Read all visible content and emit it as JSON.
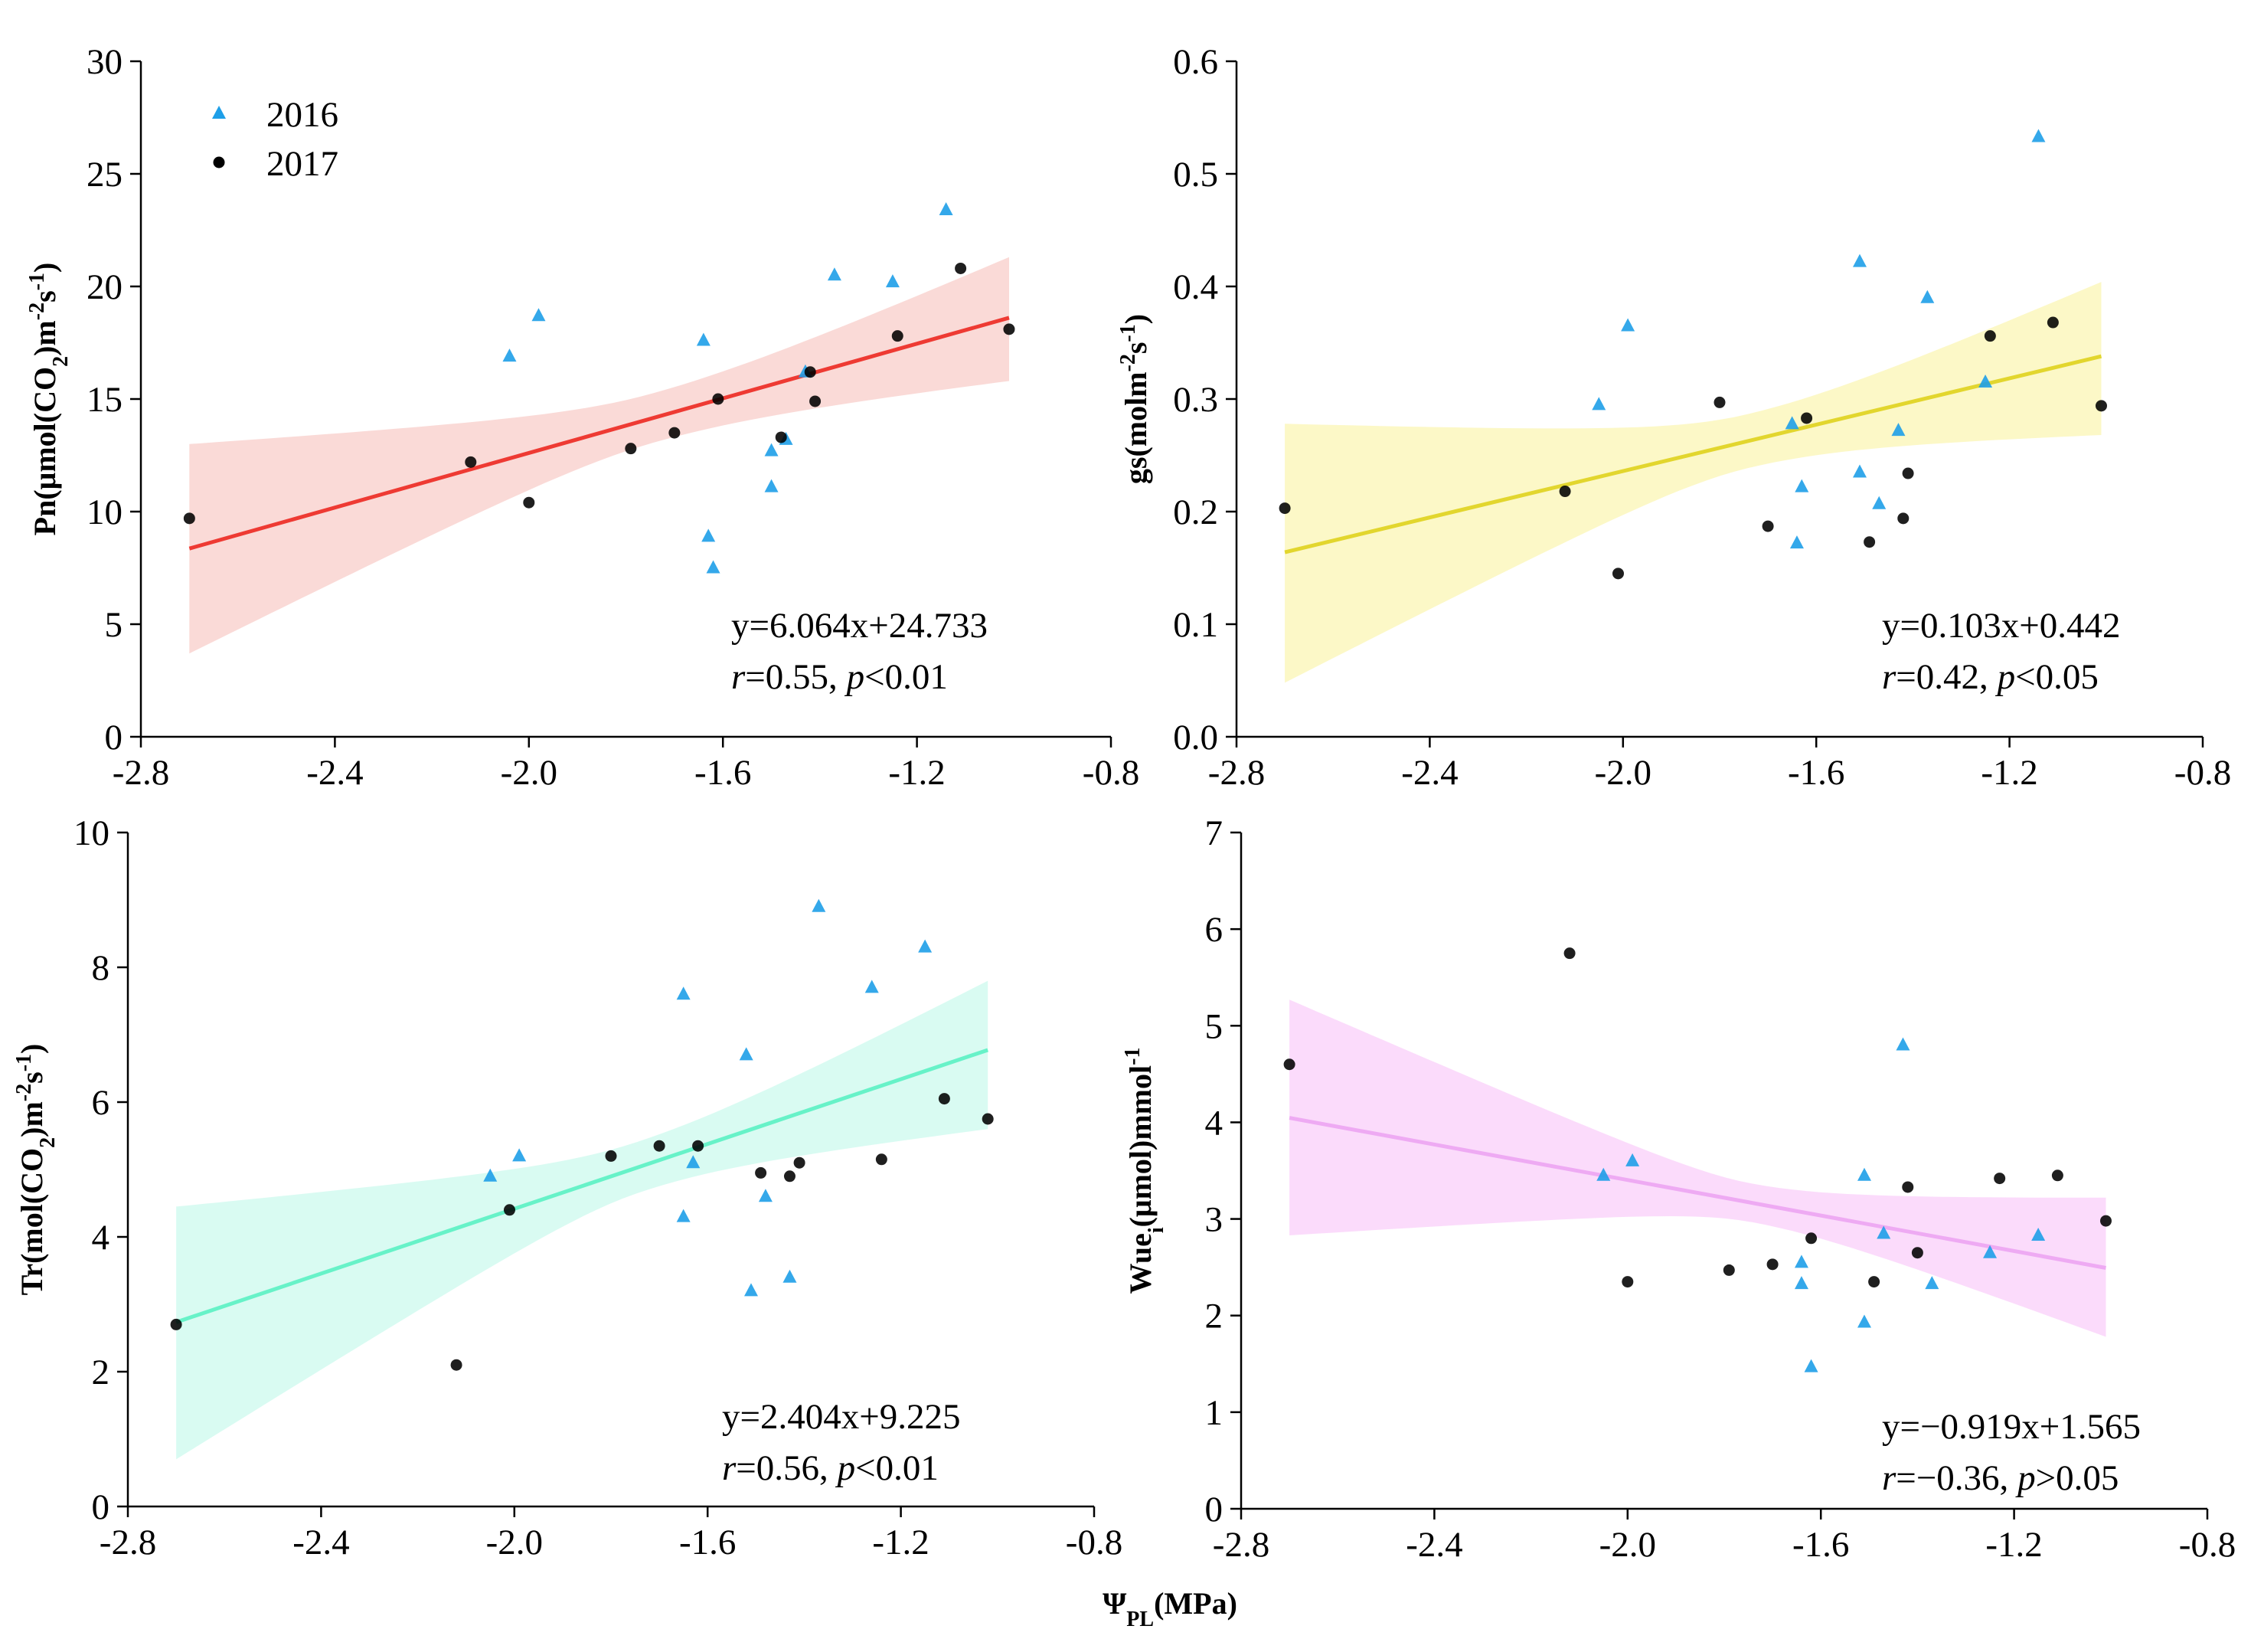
{
  "chart_data": [
    {
      "type": "scatter",
      "id": "pn",
      "xlim": [
        -2.8,
        -0.8
      ],
      "xticks": [
        -2.8,
        -2.4,
        -2.0,
        -1.6,
        -1.2,
        -0.8
      ],
      "xtick_labels": [
        "-2.8",
        "-2.4",
        "-2.0",
        "-1.6",
        "-1.2",
        "-0.8"
      ],
      "ylim": [
        0,
        30
      ],
      "yticks": [
        0,
        5,
        10,
        15,
        20,
        25,
        30
      ],
      "ytick_labels": [
        "0",
        "5",
        "10",
        "15",
        "20",
        "25",
        "30"
      ],
      "ylabel": {
        "pre": "Pn(μmol(CO",
        "sub": "2",
        "mid": ")m",
        "sup1": "-2",
        "mid2": "s",
        "sup2": "-1",
        "post": ")"
      },
      "series": [
        {
          "name": "2016",
          "marker": "triangle",
          "color": "#1e9fe8",
          "points": [
            [
              -2.04,
              16.9
            ],
            [
              -1.98,
              18.7
            ],
            [
              -1.64,
              17.6
            ],
            [
              -1.63,
              8.9
            ],
            [
              -1.62,
              7.5
            ],
            [
              -1.5,
              12.7
            ],
            [
              -1.5,
              11.1
            ],
            [
              -1.47,
              13.2
            ],
            [
              -1.43,
              16.2
            ],
            [
              -1.37,
              20.5
            ],
            [
              -1.25,
              20.2
            ],
            [
              -1.14,
              23.4
            ]
          ]
        },
        {
          "name": "2017",
          "marker": "circle",
          "color": "#000000",
          "points": [
            [
              -2.7,
              9.7
            ],
            [
              -2.12,
              12.2
            ],
            [
              -2.0,
              10.4
            ],
            [
              -1.79,
              12.8
            ],
            [
              -1.7,
              13.5
            ],
            [
              -1.61,
              15.0
            ],
            [
              -1.48,
              13.3
            ],
            [
              -1.42,
              16.2
            ],
            [
              -1.41,
              14.9
            ],
            [
              -1.24,
              17.8
            ],
            [
              -1.11,
              20.8
            ],
            [
              -1.01,
              18.1
            ]
          ]
        }
      ],
      "fit": {
        "slope": 6.064,
        "intercept": 24.733,
        "x_range": [
          -2.7,
          -1.01
        ],
        "color": "#ee3a33",
        "band_color": "#f9d4d0",
        "band_upper": [
          13.0,
          21.3
        ],
        "band_lower": [
          3.7,
          15.8
        ],
        "band_mid_x": -1.74,
        "band_half_width_min": 1.1
      },
      "equation": "y=6.064x+24.733",
      "stats": {
        "r": "0.55",
        "p_op": "<",
        "p": "0.01"
      }
    },
    {
      "type": "scatter",
      "id": "gs",
      "xlim": [
        -2.8,
        -0.8
      ],
      "xticks": [
        -2.8,
        -2.4,
        -2.0,
        -1.6,
        -1.2,
        -0.8
      ],
      "xtick_labels": [
        "-2.8",
        "-2.4",
        "-2.0",
        "-1.6",
        "-1.2",
        "-0.8"
      ],
      "ylim": [
        0,
        0.6
      ],
      "yticks": [
        0,
        0.1,
        0.2,
        0.3,
        0.4,
        0.5,
        0.6
      ],
      "ytick_labels": [
        "0.0",
        "0.1",
        "0.2",
        "0.3",
        "0.4",
        "0.5",
        "0.6"
      ],
      "ylabel": {
        "pre": "gs(molm",
        "sub": "",
        "mid": "",
        "sup1": "-2",
        "mid2": "s",
        "sup2": "-1",
        "post": ")"
      },
      "series": [
        {
          "name": "2016",
          "marker": "triangle",
          "color": "#1e9fe8",
          "points": [
            [
              -2.05,
              0.295
            ],
            [
              -1.99,
              0.365
            ],
            [
              -1.65,
              0.278
            ],
            [
              -1.64,
              0.172
            ],
            [
              -1.63,
              0.222
            ],
            [
              -1.51,
              0.422
            ],
            [
              -1.51,
              0.235
            ],
            [
              -1.47,
              0.207
            ],
            [
              -1.43,
              0.272
            ],
            [
              -1.37,
              0.39
            ],
            [
              -1.25,
              0.315
            ],
            [
              -1.14,
              0.533
            ]
          ]
        },
        {
          "name": "2017",
          "marker": "circle",
          "color": "#000000",
          "points": [
            [
              -2.7,
              0.203
            ],
            [
              -2.12,
              0.218
            ],
            [
              -2.01,
              0.145
            ],
            [
              -1.8,
              0.297
            ],
            [
              -1.7,
              0.187
            ],
            [
              -1.62,
              0.283
            ],
            [
              -1.49,
              0.173
            ],
            [
              -1.42,
              0.194
            ],
            [
              -1.41,
              0.234
            ],
            [
              -1.24,
              0.356
            ],
            [
              -1.11,
              0.368
            ],
            [
              -1.01,
              0.294
            ]
          ]
        }
      ],
      "fit": {
        "slope": 0.103,
        "intercept": 0.442,
        "x_range": [
          -2.7,
          -1.01
        ],
        "color": "#e2d62e",
        "band_color": "#fbf7bd",
        "band_upper": [
          0.278,
          0.404
        ],
        "band_lower": [
          0.048,
          0.268
        ],
        "band_mid_x": -1.74,
        "band_half_width_min": 0.024
      },
      "equation": "y=0.103x+0.442",
      "stats": {
        "r": "0.42",
        "p_op": "<",
        "p": "0.05"
      }
    },
    {
      "type": "scatter",
      "id": "tr",
      "xlim": [
        -2.8,
        -0.8
      ],
      "xticks": [
        -2.8,
        -2.4,
        -2.0,
        -1.6,
        -1.2,
        -0.8
      ],
      "xtick_labels": [
        "-2.8",
        "-2.4",
        "-2.0",
        "-1.6",
        "-1.2",
        "-0.8"
      ],
      "ylim": [
        0,
        10
      ],
      "yticks": [
        0,
        2,
        4,
        6,
        8,
        10
      ],
      "ytick_labels": [
        "0",
        "2",
        "4",
        "6",
        "8",
        "10"
      ],
      "ylabel": {
        "pre": "Tr(mol(CO",
        "sub": "2",
        "mid": ")m",
        "sup1": "-2",
        "mid2": "s",
        "sup2": "-1",
        "post": ")"
      },
      "series": [
        {
          "name": "2016",
          "marker": "triangle",
          "color": "#1e9fe8",
          "points": [
            [
              -2.05,
              4.9
            ],
            [
              -1.99,
              5.2
            ],
            [
              -1.65,
              7.6
            ],
            [
              -1.65,
              4.3
            ],
            [
              -1.63,
              5.1
            ],
            [
              -1.52,
              6.7
            ],
            [
              -1.51,
              3.2
            ],
            [
              -1.48,
              4.6
            ],
            [
              -1.43,
              3.4
            ],
            [
              -1.37,
              8.9
            ],
            [
              -1.26,
              7.7
            ],
            [
              -1.15,
              8.3
            ]
          ]
        },
        {
          "name": "2017",
          "marker": "circle",
          "color": "#000000",
          "points": [
            [
              -2.7,
              2.7
            ],
            [
              -2.12,
              2.1
            ],
            [
              -2.01,
              4.4
            ],
            [
              -1.8,
              5.2
            ],
            [
              -1.7,
              5.35
            ],
            [
              -1.62,
              5.35
            ],
            [
              -1.49,
              4.95
            ],
            [
              -1.43,
              4.9
            ],
            [
              -1.41,
              5.1
            ],
            [
              -1.24,
              5.15
            ],
            [
              -1.11,
              6.05
            ],
            [
              -1.02,
              5.75
            ]
          ]
        }
      ],
      "fit": {
        "slope": 2.404,
        "intercept": 9.225,
        "x_range": [
          -2.7,
          -1.02
        ],
        "color": "#67f2c8",
        "band_color": "#d2faf0",
        "band_upper": [
          4.45,
          7.8
        ],
        "band_lower": [
          0.7,
          5.6
        ],
        "band_mid_x": -1.74,
        "band_half_width_min": 0.38
      },
      "equation": "y=2.404x+9.225",
      "stats": {
        "r": "0.56",
        "p_op": "<",
        "p": "0.01"
      }
    },
    {
      "type": "scatter",
      "id": "wue",
      "xlim": [
        -2.8,
        -0.8
      ],
      "xticks": [
        -2.8,
        -2.4,
        -2.0,
        -1.6,
        -1.2,
        -0.8
      ],
      "xtick_labels": [
        "-2.8",
        "-2.4",
        "-2.0",
        "-1.6",
        "-1.2",
        "-0.8"
      ],
      "ylim": [
        0,
        7
      ],
      "yticks": [
        0,
        1,
        2,
        3,
        4,
        5,
        6,
        7
      ],
      "ytick_labels": [
        "0",
        "1",
        "2",
        "3",
        "4",
        "5",
        "6",
        "7"
      ],
      "ylabel": {
        "pre": "Wue",
        "sub": "i",
        "mid": "(μmol)mmol",
        "sup1": "-1",
        "mid2": "",
        "sup2": "",
        "post": ""
      },
      "series": [
        {
          "name": "2016",
          "marker": "triangle",
          "color": "#1e9fe8",
          "points": [
            [
              -2.05,
              3.45
            ],
            [
              -1.99,
              3.6
            ],
            [
              -1.64,
              2.55
            ],
            [
              -1.64,
              2.33
            ],
            [
              -1.62,
              1.47
            ],
            [
              -1.51,
              3.45
            ],
            [
              -1.51,
              1.93
            ],
            [
              -1.47,
              2.85
            ],
            [
              -1.43,
              4.8
            ],
            [
              -1.37,
              2.33
            ],
            [
              -1.25,
              2.65
            ],
            [
              -1.15,
              2.83
            ]
          ]
        },
        {
          "name": "2017",
          "marker": "circle",
          "color": "#000000",
          "points": [
            [
              -2.7,
              4.6
            ],
            [
              -2.12,
              5.75
            ],
            [
              -2.0,
              2.35
            ],
            [
              -1.79,
              2.47
            ],
            [
              -1.7,
              2.53
            ],
            [
              -1.62,
              2.8
            ],
            [
              -1.49,
              2.35
            ],
            [
              -1.42,
              3.33
            ],
            [
              -1.4,
              2.65
            ],
            [
              -1.23,
              3.42
            ],
            [
              -1.11,
              3.45
            ],
            [
              -1.01,
              2.98
            ]
          ]
        }
      ],
      "fit": {
        "slope": -0.919,
        "intercept": 1.565,
        "x_range": [
          -2.7,
          -1.01
        ],
        "color": "#eeaaf3",
        "band_color": "#fad5fa",
        "band_upper": [
          5.27,
          3.22
        ],
        "band_lower": [
          2.83,
          1.78
        ],
        "band_mid_x": -1.74,
        "band_half_width_min": 0.2
      },
      "equation": "y=−0.919x+1.565",
      "stats": {
        "r": "−0.36",
        "p_op": ">",
        "p": "0.05"
      }
    }
  ],
  "legend": {
    "entries": [
      {
        "label": "2016",
        "marker": "triangle"
      },
      {
        "label": "2017",
        "marker": "circle"
      }
    ]
  },
  "xlabel": {
    "pre": "Ψ",
    "sub": "PL",
    "post": "(MPa)"
  },
  "stat_labels": {
    "r": "r",
    "eq": "=",
    "p": "p",
    "sep": ", "
  }
}
